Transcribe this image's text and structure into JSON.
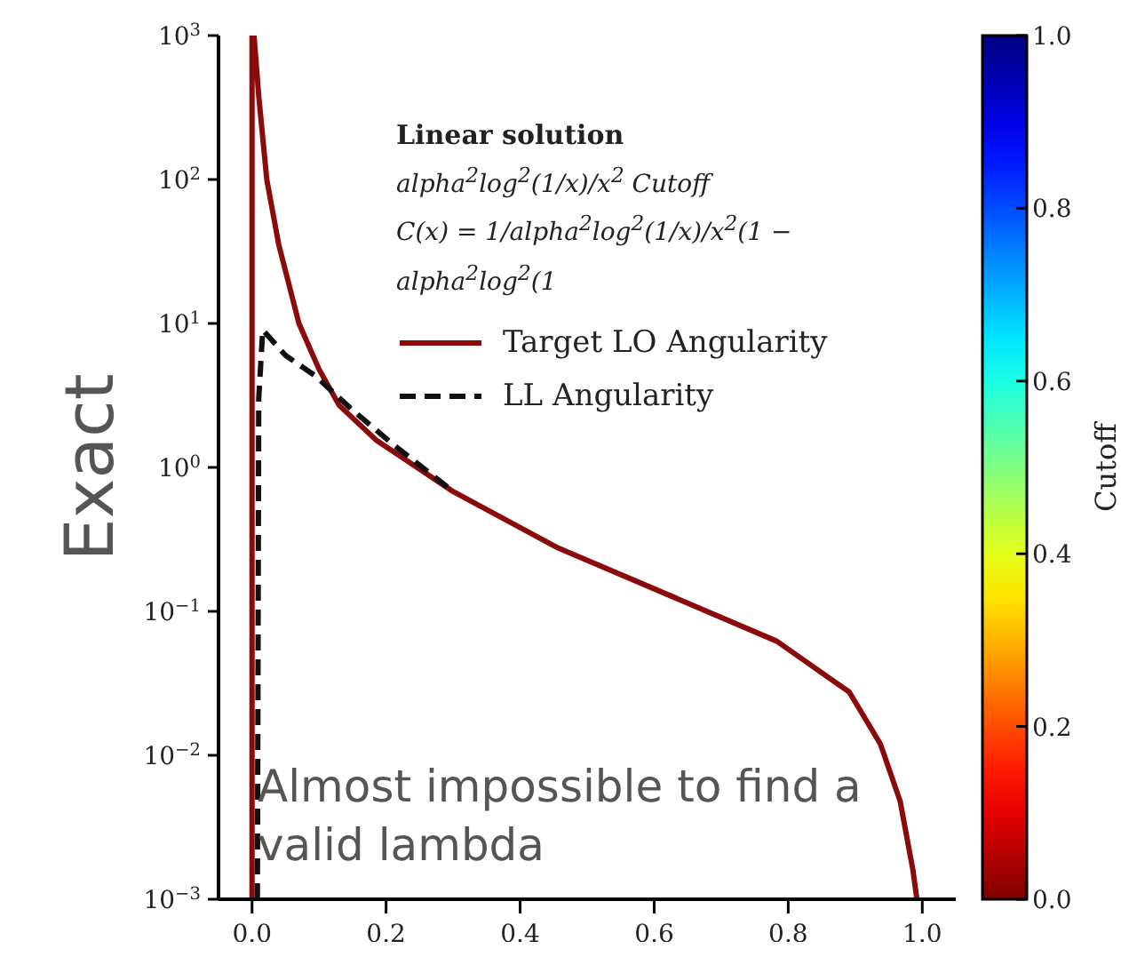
{
  "chart_data": {
    "type": "line",
    "ylabel": "Exact",
    "legend_title": "Linear solution",
    "legend": "top right",
    "log": "y",
    "grid": false,
    "marker": "none",
    "xlim": [
      -0.05,
      1.05
    ],
    "xticks": [
      {
        "value": 0,
        "label": "0.0"
      },
      {
        "value": 0.2,
        "label": "0.2"
      },
      {
        "value": 0.4,
        "label": "0.4"
      },
      {
        "value": 0.6,
        "label": "0.6"
      },
      {
        "value": 0.8,
        "label": "0.8"
      },
      {
        "value": 1,
        "label": "1.0"
      }
    ],
    "ylim": [
      0.001,
      1000
    ],
    "yticks": [
      {
        "value": 0.001,
        "label": "10$^{−3}$"
      },
      {
        "value": 0.01,
        "label": "10$^{−2}$"
      },
      {
        "value": 0.1,
        "label": "10$^{−1}$"
      },
      {
        "value": 1,
        "label": "10$^{0}$"
      },
      {
        "value": 10,
        "label": "10$^{1}$"
      },
      {
        "value": 100,
        "label": "10$^{2}$"
      },
      {
        "value": 1000,
        "label": "10$^{3}$"
      }
    ],
    "clabel": "Cutoff",
    "clim": [
      0,
      1
    ],
    "cticks": [
      {
        "value": 0,
        "label": "0.0"
      },
      {
        "value": 0.2,
        "label": "0.2"
      },
      {
        "value": 0.4,
        "label": "0.4"
      },
      {
        "value": 0.6,
        "label": "0.6"
      },
      {
        "value": 0.8,
        "label": "0.8"
      },
      {
        "value": 1,
        "label": "1.0"
      }
    ],
    "series": [
      {
        "name": "Target LO Angularity",
        "color": "#8b0a0a",
        "line_style": "solid",
        "x": [
          0.0,
          0.0,
          0.003,
          0.01,
          0.022,
          0.04,
          0.07,
          0.1,
          0.13,
          0.185,
          0.3,
          0.457,
          0.639,
          0.783,
          0.891,
          0.9375,
          0.967,
          0.986,
          0.992
        ],
        "values": [
          0.001,
          1000,
          1000,
          380,
          100,
          35,
          10,
          4.8,
          2.7,
          1.55,
          0.68,
          0.275,
          0.12,
          0.062,
          0.0275,
          0.012,
          0.0048,
          0.0016,
          0.001
        ]
      },
      {
        "name": "LL Angularity",
        "color": "#111111",
        "line_style": "dashed",
        "x": [
          0.008,
          0.01,
          0.016,
          0.05,
          0.095,
          0.15,
          0.21,
          0.3
        ],
        "values": [
          0.001,
          3,
          9,
          6,
          4.3,
          2.5,
          1.45,
          0.68
        ]
      }
    ],
    "annotations": [
      "alpha$^{2}$log$^{2}$(1/x)/x$^{2}$ Cutoff",
      "C(x) = 1/alpha$^{2}$log$^{2}$(1/x)/x$^{2}$(1 − alpha$^{2}$log$^{2}$(1",
      "Almost impossible to find a valid lambda"
    ]
  }
}
